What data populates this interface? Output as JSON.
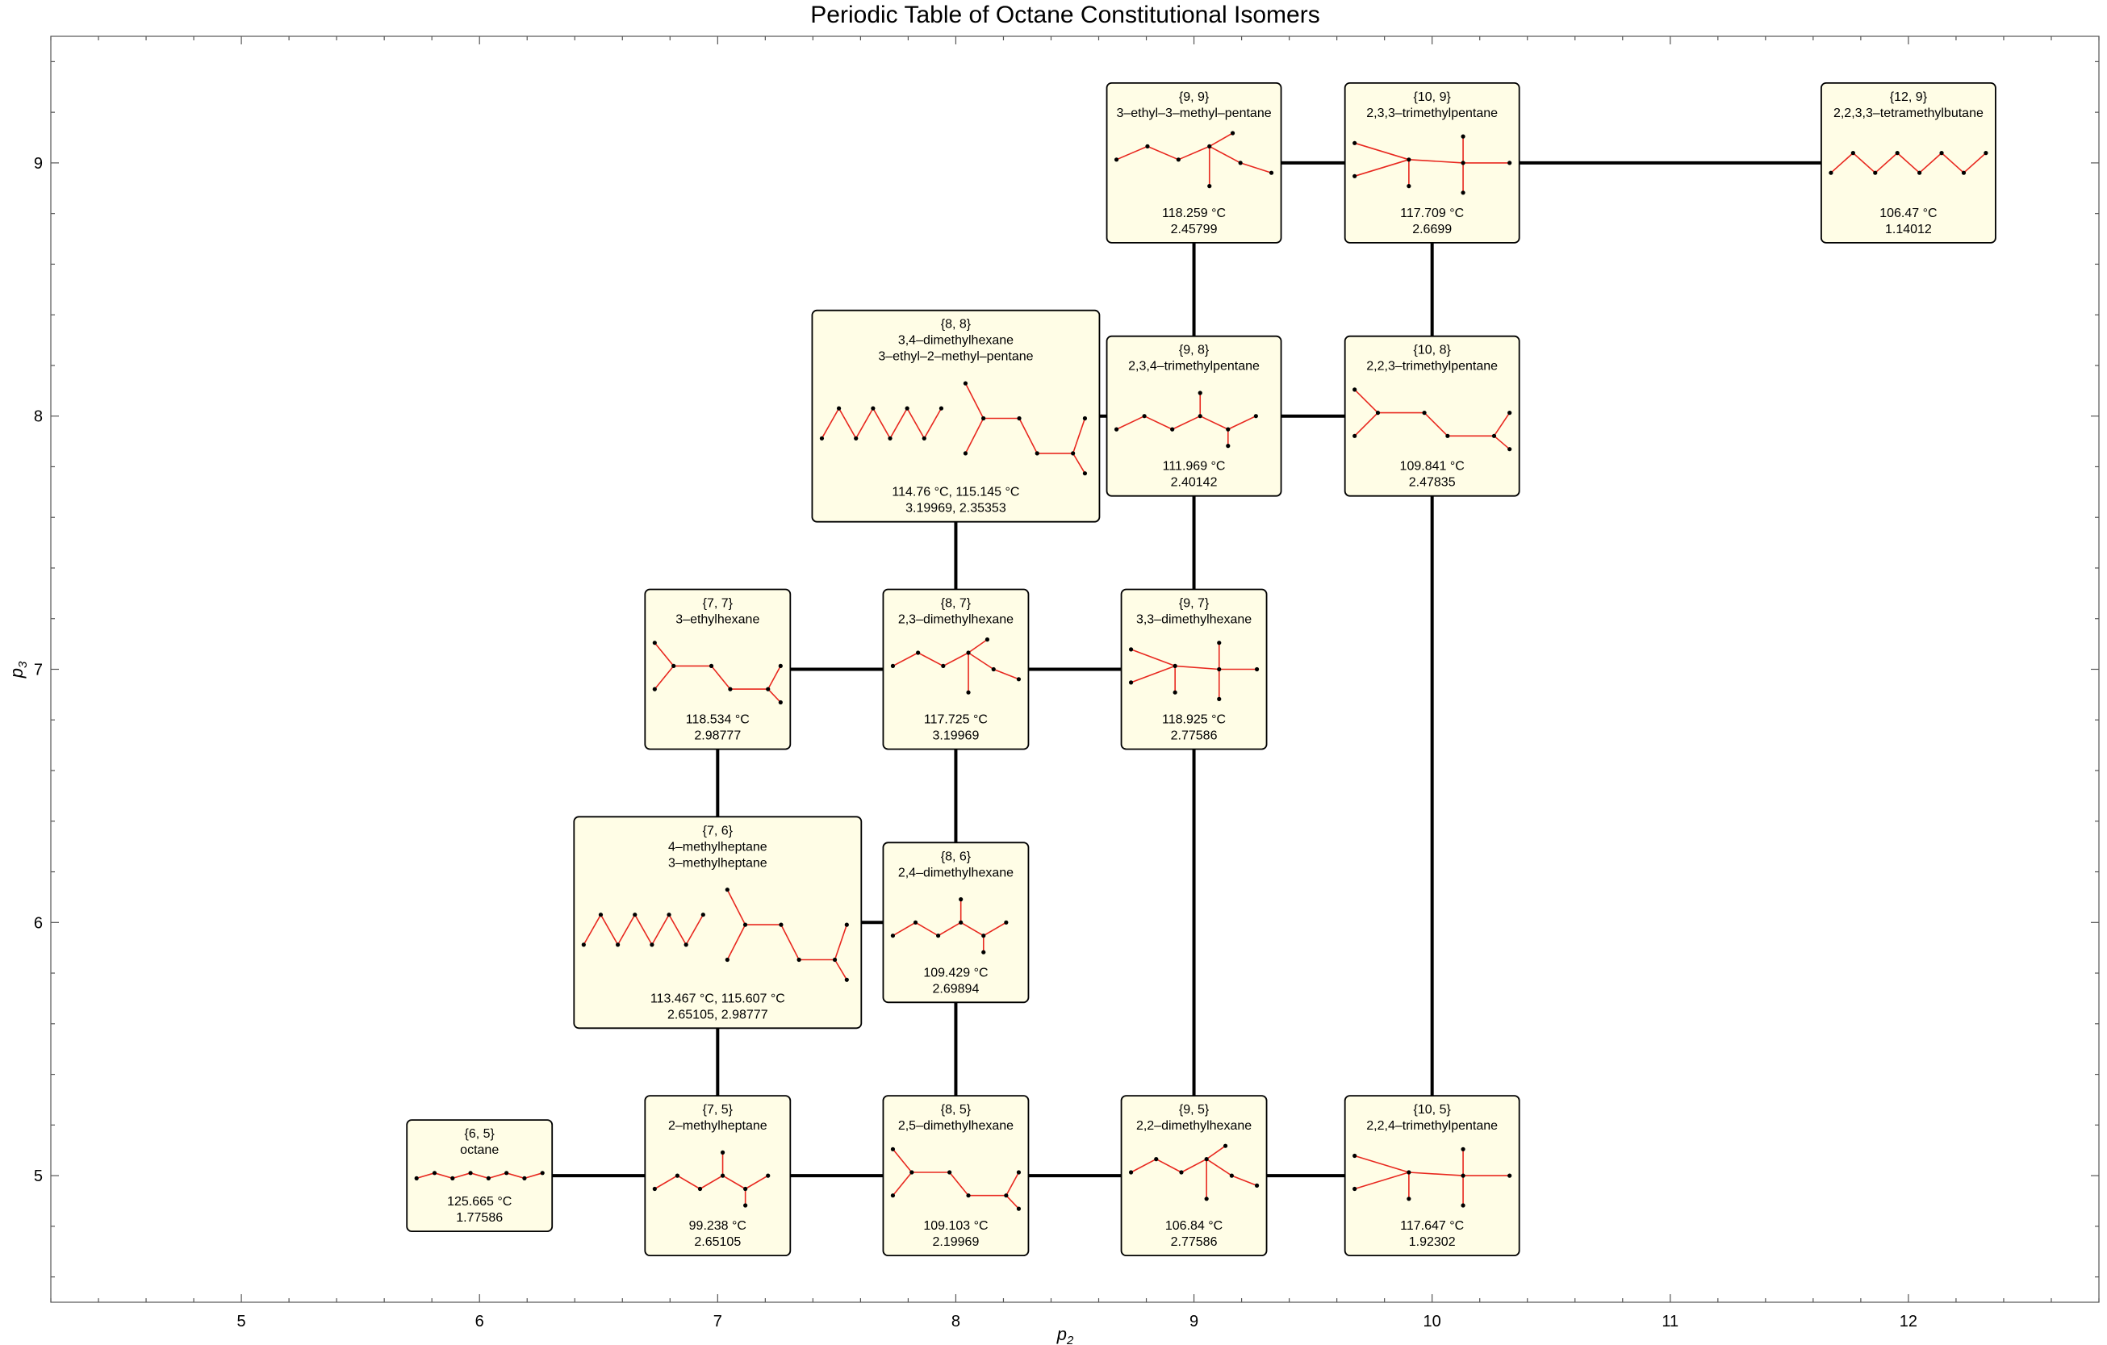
{
  "chart_data": {
    "type": "scatter",
    "title": "Periodic Table of Octane Constitutional Isomers",
    "xlabel": "p",
    "xlabel_sub": "2",
    "ylabel": "p",
    "ylabel_sub": "3",
    "xlim": [
      4.2,
      12.8
    ],
    "ylim": [
      4.5,
      9.5
    ],
    "xticks": [
      "5",
      "6",
      "7",
      "8",
      "9",
      "10",
      "11",
      "12"
    ],
    "yticks": [
      "5",
      "6",
      "7",
      "8",
      "9"
    ],
    "grid": false,
    "nodes": [
      {
        "x": 6,
        "y": 5,
        "label": "{6, 5}",
        "names": [
          "octane"
        ],
        "temps": "125.665 °C",
        "values": "1.77586"
      },
      {
        "x": 7,
        "y": 5,
        "label": "{7, 5}",
        "names": [
          "2–methylheptane"
        ],
        "temps": "99.238 °C",
        "values": "2.65105"
      },
      {
        "x": 8,
        "y": 5,
        "label": "{8, 5}",
        "names": [
          "2,5–dimethylhexane"
        ],
        "temps": "109.103 °C",
        "values": "2.19969"
      },
      {
        "x": 9,
        "y": 5,
        "label": "{9, 5}",
        "names": [
          "2,2–dimethylhexane"
        ],
        "temps": "106.84 °C",
        "values": "2.77586"
      },
      {
        "x": 10,
        "y": 5,
        "label": "{10, 5}",
        "names": [
          "2,2,4–trimethylpentane"
        ],
        "temps": "117.647 °C",
        "values": "1.92302"
      },
      {
        "x": 7,
        "y": 6,
        "label": "{7, 6}",
        "names": [
          "4–methylheptane",
          "3–methylheptane"
        ],
        "temps": "113.467 °C, 115.607 °C",
        "values": "2.65105, 2.98777"
      },
      {
        "x": 8,
        "y": 6,
        "label": "{8, 6}",
        "names": [
          "2,4–dimethylhexane"
        ],
        "temps": "109.429 °C",
        "values": "2.69894"
      },
      {
        "x": 7,
        "y": 7,
        "label": "{7, 7}",
        "names": [
          "3–ethylhexane"
        ],
        "temps": "118.534 °C",
        "values": "2.98777"
      },
      {
        "x": 8,
        "y": 7,
        "label": "{8, 7}",
        "names": [
          "2,3–dimethylhexane"
        ],
        "temps": "117.725 °C",
        "values": "3.19969"
      },
      {
        "x": 9,
        "y": 7,
        "label": "{9, 7}",
        "names": [
          "3,3–dimethylhexane"
        ],
        "temps": "118.925 °C",
        "values": "2.77586"
      },
      {
        "x": 8,
        "y": 8,
        "label": "{8, 8}",
        "names": [
          "3,4–dimethylhexane",
          "3–ethyl–2–methyl–pentane"
        ],
        "temps": "114.76 °C, 115.145 °C",
        "values": "3.19969, 2.35353"
      },
      {
        "x": 9,
        "y": 8,
        "label": "{9, 8}",
        "names": [
          "2,3,4–trimethylpentane"
        ],
        "temps": "111.969 °C",
        "values": "2.40142"
      },
      {
        "x": 10,
        "y": 8,
        "label": "{10, 8}",
        "names": [
          "2,2,3–trimethylpentane"
        ],
        "temps": "109.841 °C",
        "values": "2.47835"
      },
      {
        "x": 9,
        "y": 9,
        "label": "{9, 9}",
        "names": [
          "3–ethyl–3–methyl–pentane"
        ],
        "temps": "118.259 °C",
        "values": "2.45799"
      },
      {
        "x": 10,
        "y": 9,
        "label": "{10, 9}",
        "names": [
          "2,3,3–trimethylpentane"
        ],
        "temps": "117.709 °C",
        "values": "2.6699"
      },
      {
        "x": 12,
        "y": 9,
        "label": "{12, 9}",
        "names": [
          "2,2,3,3–tetramethylbutane"
        ],
        "temps": "106.47 °C",
        "values": "1.14012"
      }
    ],
    "edges": [
      [
        [
          6,
          5
        ],
        [
          7,
          5
        ]
      ],
      [
        [
          7,
          5
        ],
        [
          8,
          5
        ]
      ],
      [
        [
          8,
          5
        ],
        [
          9,
          5
        ]
      ],
      [
        [
          9,
          5
        ],
        [
          10,
          5
        ]
      ],
      [
        [
          7,
          5
        ],
        [
          7,
          6
        ]
      ],
      [
        [
          8,
          5
        ],
        [
          8,
          6
        ]
      ],
      [
        [
          9,
          5
        ],
        [
          9,
          7
        ]
      ],
      [
        [
          10,
          5
        ],
        [
          10,
          8
        ]
      ],
      [
        [
          7,
          6
        ],
        [
          8,
          6
        ]
      ],
      [
        [
          7,
          6
        ],
        [
          7,
          7
        ]
      ],
      [
        [
          8,
          6
        ],
        [
          8,
          7
        ]
      ],
      [
        [
          7,
          7
        ],
        [
          8,
          7
        ]
      ],
      [
        [
          8,
          7
        ],
        [
          9,
          7
        ]
      ],
      [
        [
          8,
          7
        ],
        [
          8,
          8
        ]
      ],
      [
        [
          9,
          7
        ],
        [
          9,
          8
        ]
      ],
      [
        [
          8,
          8
        ],
        [
          9,
          8
        ]
      ],
      [
        [
          9,
          8
        ],
        [
          10,
          8
        ]
      ],
      [
        [
          9,
          8
        ],
        [
          9,
          9
        ]
      ],
      [
        [
          10,
          8
        ],
        [
          10,
          9
        ]
      ],
      [
        [
          9,
          9
        ],
        [
          10,
          9
        ]
      ],
      [
        [
          10,
          9
        ],
        [
          12,
          9
        ]
      ]
    ]
  }
}
